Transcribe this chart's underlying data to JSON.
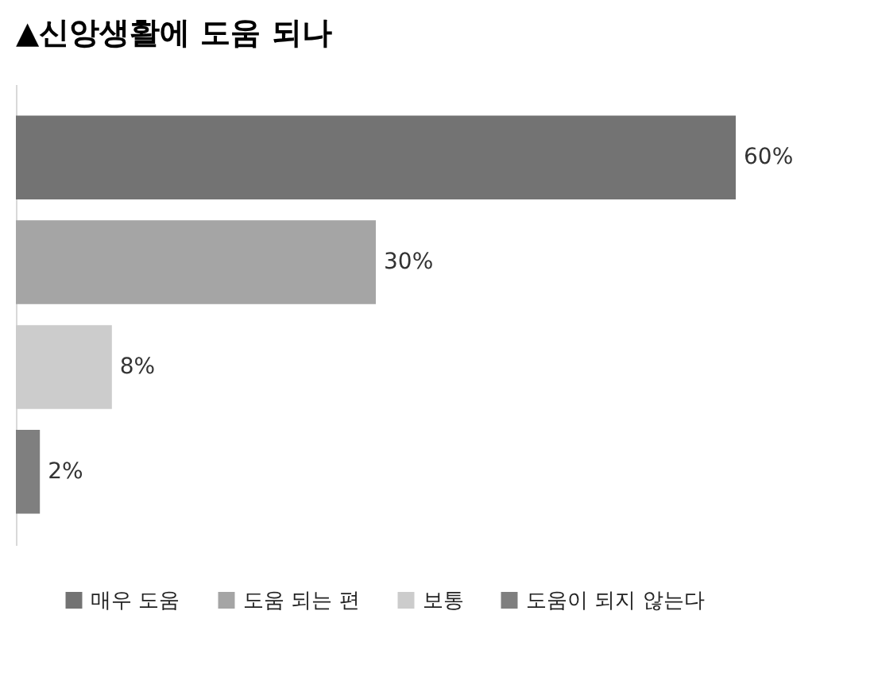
{
  "chart_data": {
    "type": "bar",
    "orientation": "horizontal",
    "title": "▲신앙생활에 도움 되나",
    "categories": [
      null,
      null,
      null,
      null
    ],
    "series": [
      {
        "name": "매우 도움",
        "color": "#737373",
        "values": [
          60,
          null,
          null,
          null
        ],
        "value_labels": [
          "60%",
          null,
          null,
          null
        ]
      },
      {
        "name": "도움 되는 편",
        "color": "#a5a5a5",
        "values": [
          null,
          30,
          null,
          null
        ],
        "value_labels": [
          null,
          "30%",
          null,
          null
        ]
      },
      {
        "name": "보통",
        "color": "#cccccc",
        "values": [
          null,
          null,
          8,
          null
        ],
        "value_labels": [
          null,
          null,
          "8%",
          null
        ]
      },
      {
        "name": "도움이 되지 않는다",
        "color": "#7f7f7f",
        "values": [
          null,
          null,
          null,
          2
        ],
        "value_labels": [
          null,
          null,
          null,
          "2%"
        ]
      }
    ],
    "stacked": true,
    "legend": "bottom",
    "tick_labels": false,
    "grid": false
  }
}
